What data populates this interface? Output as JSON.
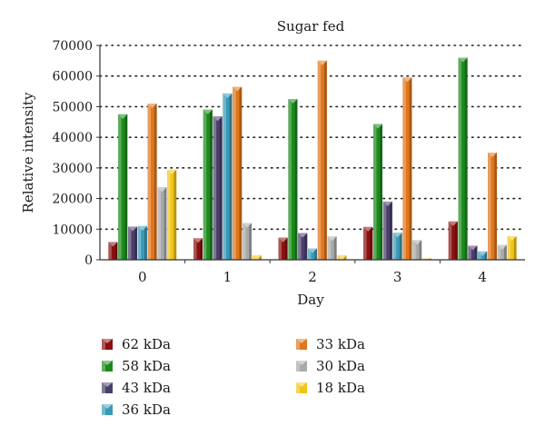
{
  "chart_data": {
    "type": "bar",
    "title": "Sugar fed",
    "xlabel": "Day",
    "ylabel": "Relative intensity",
    "ylim": [
      0,
      70000
    ],
    "yticks": [
      0,
      10000,
      20000,
      30000,
      40000,
      50000,
      60000,
      70000
    ],
    "categories": [
      "0",
      "1",
      "2",
      "3",
      "4"
    ],
    "grid": "horizontal dotted",
    "legend": "bottom",
    "series": [
      {
        "name": "62 kDa",
        "color": "#8b1010",
        "values": [
          5800,
          7000,
          7200,
          10700,
          12500
        ]
      },
      {
        "name": "58 kDa",
        "color": "#1c8a1c",
        "values": [
          47500,
          49000,
          52500,
          44300,
          66000
        ]
      },
      {
        "name": "43 kDa",
        "color": "#4a3f6b",
        "values": [
          10800,
          46800,
          8700,
          19000,
          4600
        ]
      },
      {
        "name": "36 kDa",
        "color": "#3a9ab8",
        "values": [
          11000,
          54300,
          3700,
          8800,
          2700
        ]
      },
      {
        "name": "33 kDa",
        "color": "#e0761c",
        "values": [
          51000,
          56500,
          65000,
          59500,
          35000
        ]
      },
      {
        "name": "30 kDa",
        "color": "#a9a9a9",
        "values": [
          23700,
          12000,
          7600,
          6400,
          4800
        ]
      },
      {
        "name": "18 kDa",
        "color": "#f2c418",
        "values": [
          29400,
          1400,
          1400,
          400,
          7700
        ]
      }
    ]
  }
}
